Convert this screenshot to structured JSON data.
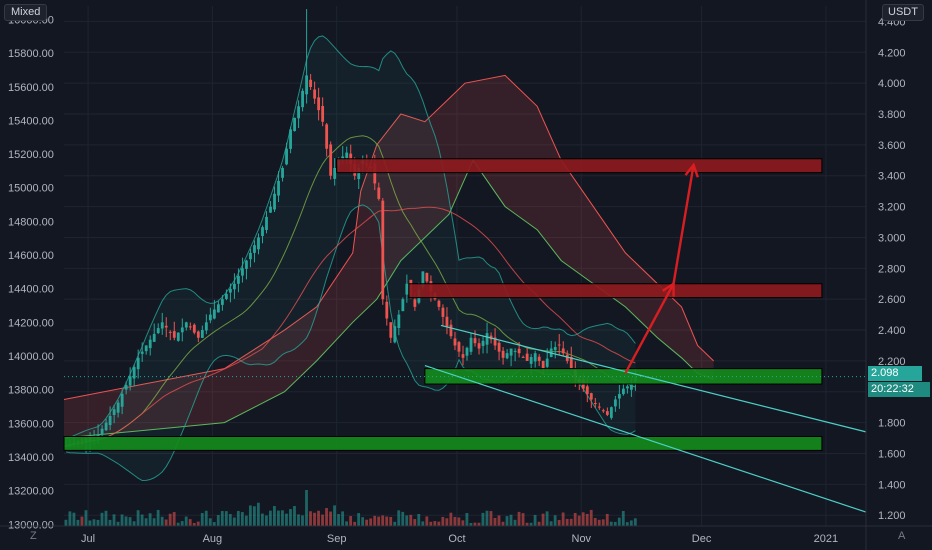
{
  "top_bar": {
    "left_badge": "Mixed",
    "currency": "USDT"
  },
  "bottom_bar": {
    "left_button": "Z",
    "right_button": "A"
  },
  "chart_data": {
    "type": "candlestick",
    "left_axis": {
      "ticks": [
        "16000.00",
        "15800.00",
        "15600.00",
        "15400.00",
        "15200.00",
        "15000.00",
        "14800.00",
        "14600.00",
        "14400.00",
        "14200.00",
        "14000.00",
        "13800.00",
        "13600.00",
        "13400.00",
        "13200.00",
        "13000.00"
      ],
      "range": [
        12990,
        16080
      ]
    },
    "right_axis": {
      "ticks": [
        "4.400",
        "4.200",
        "4.000",
        "3.800",
        "3.600",
        "3.400",
        "3.200",
        "3.000",
        "2.800",
        "2.600",
        "2.400",
        "2.200",
        "2.000",
        "1.800",
        "1.600",
        "1.400",
        "1.200"
      ],
      "range": [
        1.13,
        4.5
      ]
    },
    "x_axis": {
      "ticks": [
        "Jul",
        "Aug",
        "Sep",
        "Oct",
        "Nov",
        "Dec",
        "2021"
      ],
      "date_range": [
        "2020-06-25",
        "2021-01-11"
      ]
    },
    "last_price": {
      "value": "2.098",
      "color": "#26a69a"
    },
    "countdown": "20:22:32",
    "zones": [
      {
        "kind": "resistance",
        "low": 3.42,
        "high": 3.51,
        "from": "2020-09-01",
        "to": "2020-12-31"
      },
      {
        "kind": "resistance",
        "low": 2.61,
        "high": 2.7,
        "from": "2020-09-19",
        "to": "2020-12-31"
      },
      {
        "kind": "support",
        "low": 2.05,
        "high": 2.15,
        "from": "2020-09-23",
        "to": "2020-12-31"
      },
      {
        "kind": "support",
        "low": 1.62,
        "high": 1.71,
        "from": "2020-06-25",
        "to": "2020-12-31"
      }
    ],
    "channel": {
      "upper": [
        [
          "2020-09-27",
          2.43
        ],
        [
          "2021-01-11",
          1.74
        ]
      ],
      "lower": [
        [
          "2020-09-23",
          2.17
        ],
        [
          "2021-01-11",
          1.22
        ]
      ]
    },
    "arrows": [
      {
        "from": [
          "2020-11-12",
          2.12
        ],
        "to": [
          "2020-11-24",
          2.7
        ]
      },
      {
        "from": [
          "2020-11-24",
          2.7
        ],
        "to": [
          "2020-11-29",
          3.47
        ]
      }
    ],
    "colors": {
      "up": "#26a69a",
      "down": "#ef5350",
      "resistance": "#8c1a1e",
      "support": "#138a1c",
      "channel": "#4dd0c8",
      "arrow": "#d91e22",
      "background": "#131722"
    }
  }
}
